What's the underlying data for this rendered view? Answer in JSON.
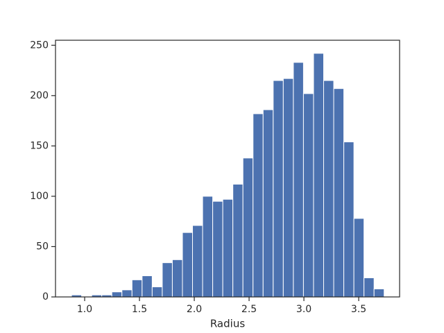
{
  "chart_data": {
    "type": "histogram",
    "xlabel": "Radius",
    "bins": [
      0.88,
      0.972,
      1.064,
      1.156,
      1.248,
      1.34,
      1.432,
      1.524,
      1.616,
      1.708,
      1.8,
      1.892,
      1.984,
      2.076,
      2.168,
      2.26,
      2.352,
      2.444,
      2.536,
      2.628,
      2.72,
      2.812,
      2.904,
      2.996,
      3.088,
      3.18,
      3.272,
      3.364,
      3.456,
      3.548,
      3.64,
      3.732
    ],
    "counts": [
      2,
      0,
      2,
      2,
      5,
      7,
      17,
      21,
      10,
      34,
      37,
      64,
      71,
      100,
      95,
      97,
      112,
      138,
      182,
      186,
      215,
      217,
      233,
      202,
      242,
      215,
      207,
      154,
      78,
      19,
      8
    ],
    "color": "#4c72b0",
    "xlim": [
      0.734,
      3.873
    ],
    "ylim": [
      0,
      255
    ],
    "xticks": [
      {
        "value": 1,
        "label": "1.0"
      },
      {
        "value": 1.5,
        "label": "1.5"
      },
      {
        "value": 2,
        "label": "2.0"
      },
      {
        "value": 2.5,
        "label": "2.5"
      },
      {
        "value": 3,
        "label": "3.0"
      },
      {
        "value": 3.5,
        "label": "3.5"
      }
    ],
    "yticks": [
      0,
      50,
      100,
      150,
      200,
      250
    ]
  }
}
